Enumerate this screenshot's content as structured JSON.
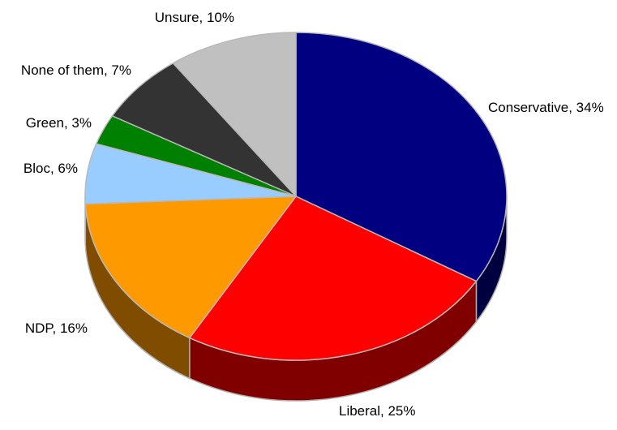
{
  "chart_data": {
    "type": "pie",
    "title": "",
    "style": "3d",
    "start_angle_deg": 90,
    "direction": "clockwise",
    "slices": [
      {
        "label": "Conservative",
        "value": 34,
        "display": "Conservative, 34%",
        "color": "#000080",
        "side_color": "#000040"
      },
      {
        "label": "Liberal",
        "value": 25,
        "display": "Liberal, 25%",
        "color": "#ff0000",
        "side_color": "#800000"
      },
      {
        "label": "NDP",
        "value": 16,
        "display": "NDP, 16%",
        "color": "#ff9900",
        "side_color": "#804c00"
      },
      {
        "label": "Bloc",
        "value": 6,
        "display": "Bloc, 6%",
        "color": "#99ccff",
        "side_color": "#4c6680"
      },
      {
        "label": "Green",
        "value": 3,
        "display": "Green, 3%",
        "color": "#008000",
        "side_color": "#004000"
      },
      {
        "label": "None of them",
        "value": 7,
        "display": "None of them, 7%",
        "color": "#333333",
        "side_color": "#1a1a1a"
      },
      {
        "label": "Unsure",
        "value": 10,
        "display": "Unsure, 10%",
        "color": "#c0c0c0",
        "side_color": "#606060"
      }
    ],
    "legend": "none",
    "label_placement": "outside"
  }
}
